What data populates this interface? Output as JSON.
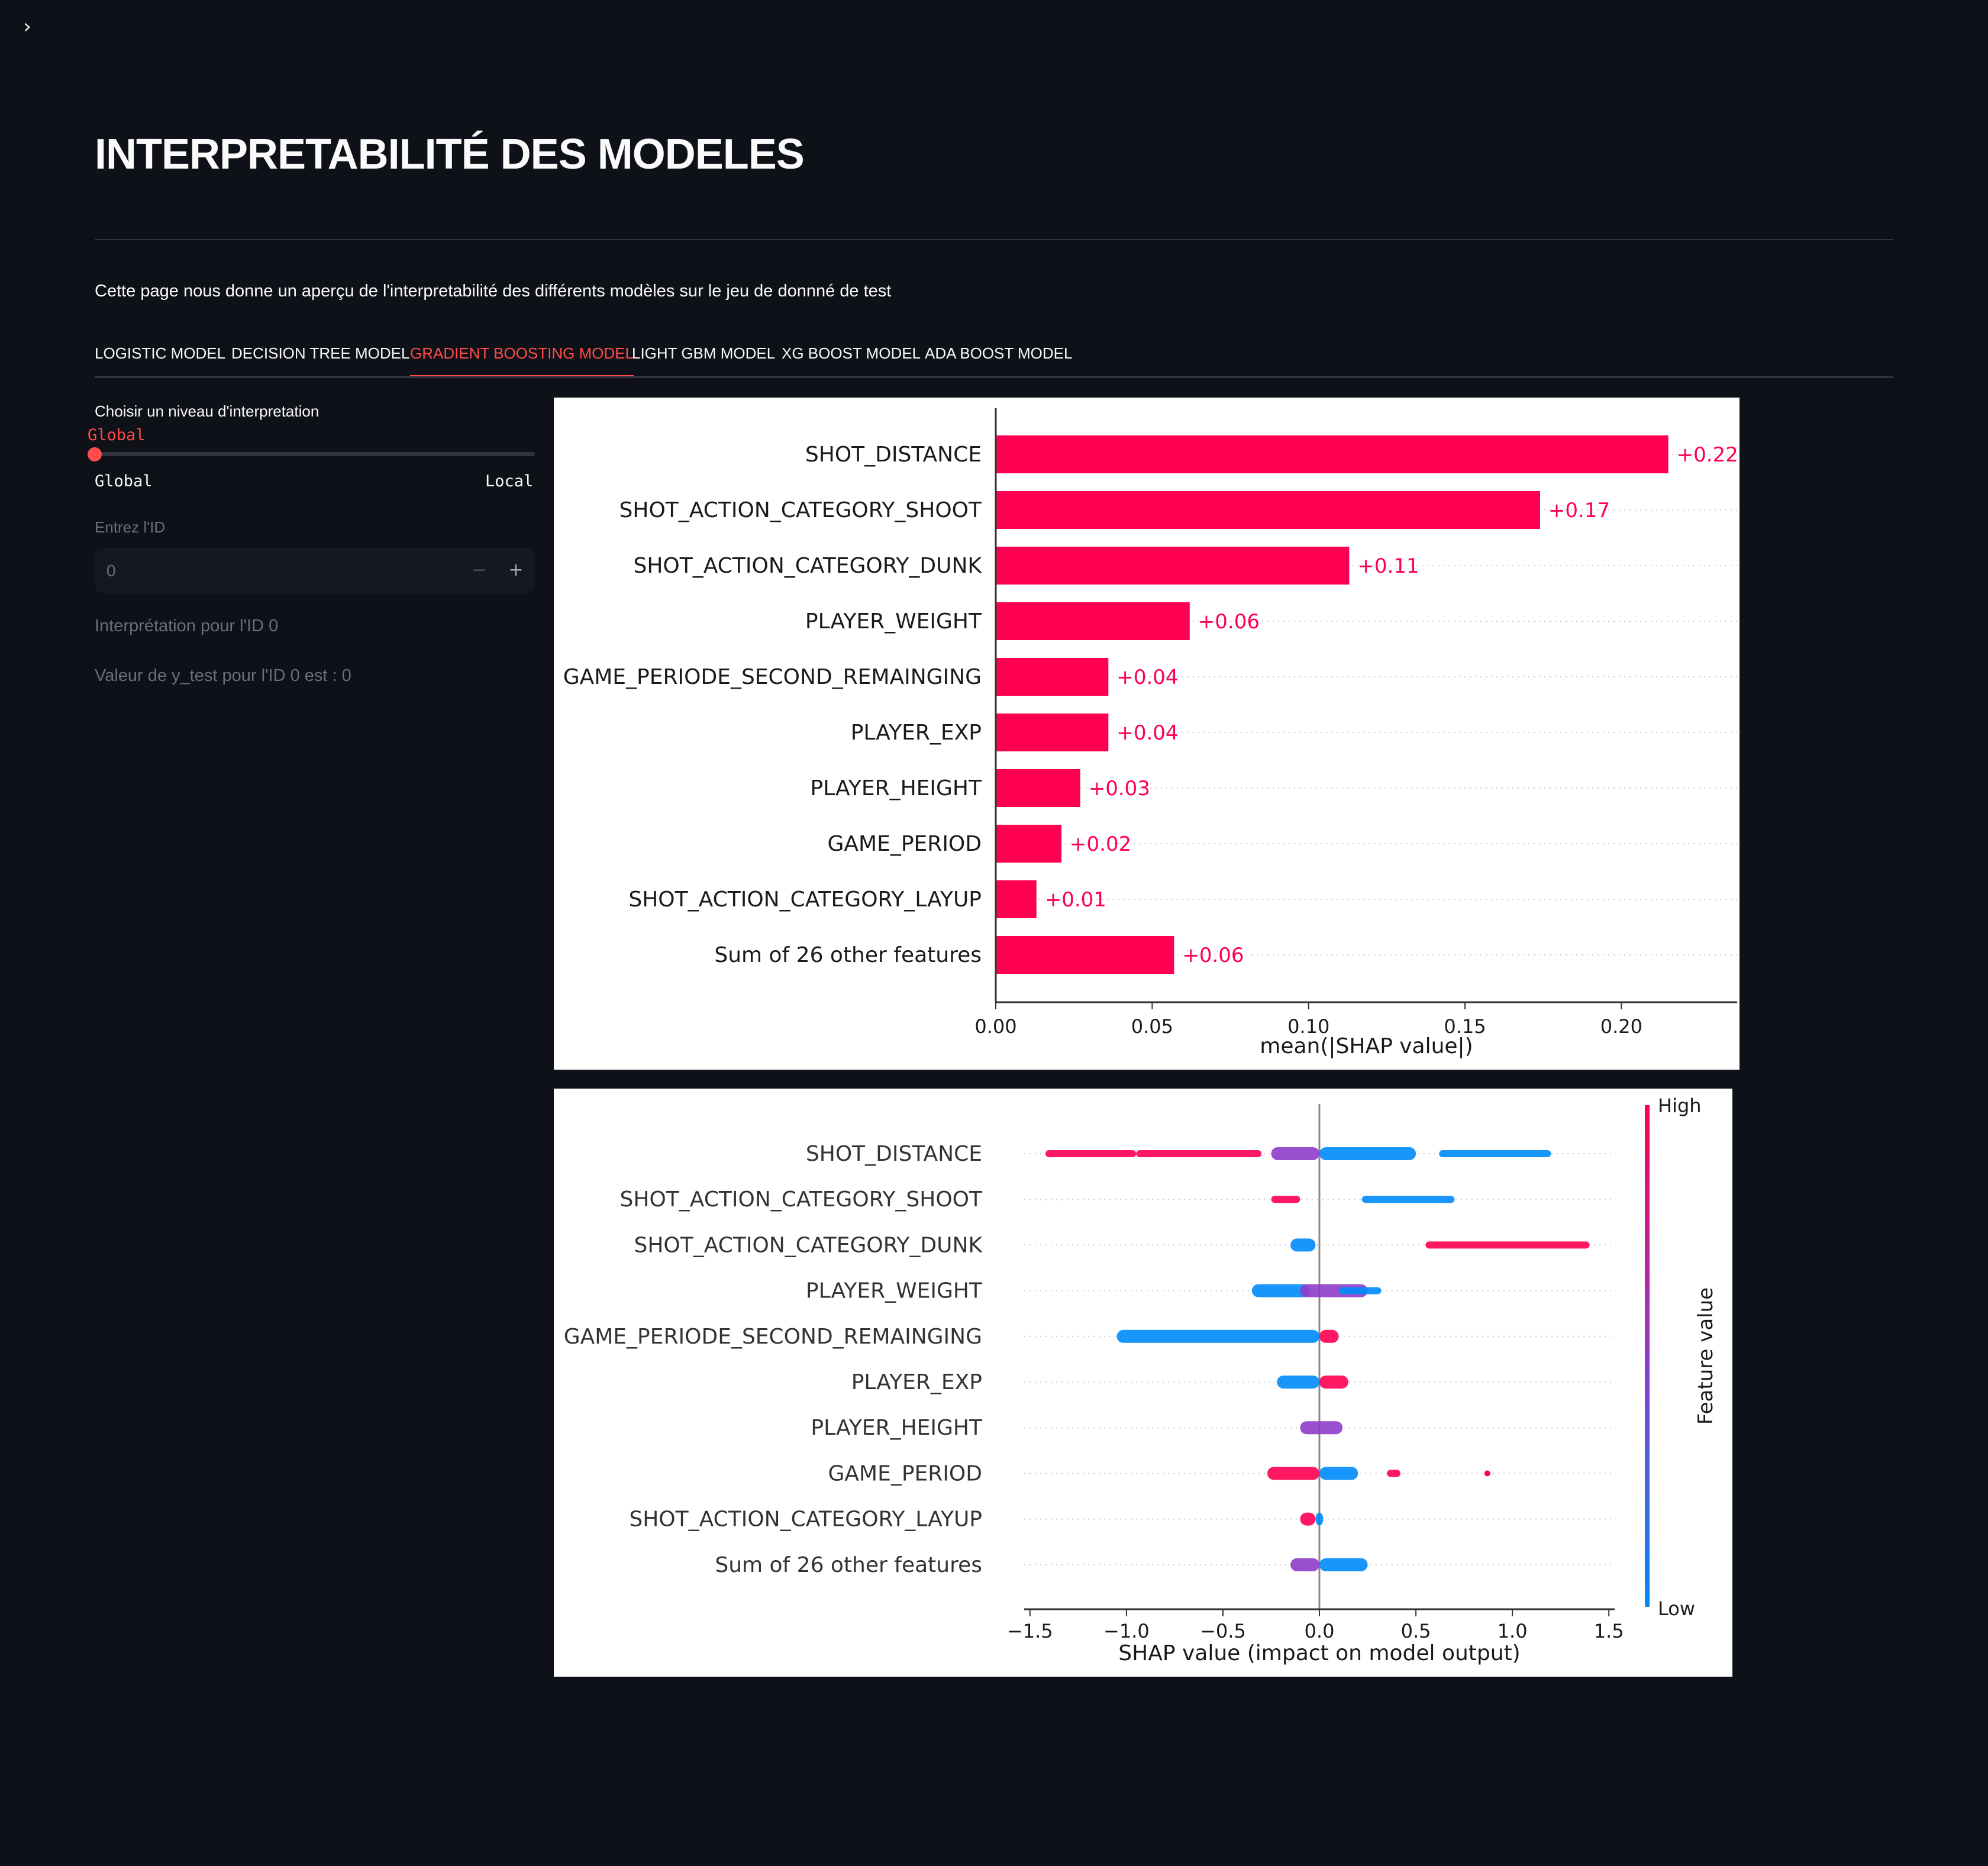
{
  "sidebar_toggle": "›",
  "page": {
    "title": "INTERPRETABILITÉ DES MODELES",
    "intro": "Cette page nous donne un aperçu de l'interpretabilité des différents modèles sur le jeu de donnné de test"
  },
  "tabs": [
    {
      "label": "LOGISTIC MODEL",
      "active": false
    },
    {
      "label": "DECISION TREE MODEL",
      "active": false
    },
    {
      "label": "GRADIENT BOOSTING MODEL",
      "active": true
    },
    {
      "label": "LIGHT GBM MODEL",
      "active": false
    },
    {
      "label": "XG BOOST MODEL",
      "active": false
    },
    {
      "label": "ADA BOOST MODEL",
      "active": false
    }
  ],
  "controls": {
    "slider_label": "Choisir un niveau d'interpretation",
    "slider_value": "Global",
    "slider_min_label": "Global",
    "slider_max_label": "Local",
    "id_label": "Entrez l'ID",
    "id_value": "0",
    "minus": "−",
    "plus": "+",
    "interpretation_text": "Interprétation pour l'ID 0",
    "ytest_text": "Valeur de y_test pour l'ID 0 est : 0"
  },
  "colors": {
    "accent": "#ff4b4b",
    "bar": "#ff0051",
    "shap_high": "#ff0051",
    "shap_low": "#008bfb",
    "background": "#0e1117"
  },
  "chart_data": [
    {
      "type": "bar",
      "orientation": "horizontal",
      "categories": [
        "SHOT_DISTANCE",
        "SHOT_ACTION_CATEGORY_SHOOT",
        "SHOT_ACTION_CATEGORY_DUNK",
        "PLAYER_WEIGHT",
        "GAME_PERIODE_SECOND_REMAINGING",
        "PLAYER_EXP",
        "PLAYER_HEIGHT",
        "GAME_PERIOD",
        "SHOT_ACTION_CATEGORY_LAYUP",
        "Sum of 26 other features"
      ],
      "values": [
        0.215,
        0.174,
        0.113,
        0.062,
        0.036,
        0.036,
        0.027,
        0.021,
        0.013,
        0.057
      ],
      "value_labels": [
        "+0.22",
        "+0.17",
        "+0.11",
        "+0.06",
        "+0.04",
        "+0.04",
        "+0.03",
        "+0.02",
        "+0.01",
        "+0.06"
      ],
      "xlabel": "mean(|SHAP value|)",
      "xticks": [
        "0.00",
        "0.05",
        "0.10",
        "0.15",
        "0.20"
      ],
      "xlim": [
        0,
        0.237
      ]
    },
    {
      "type": "scatter",
      "subtype": "beeswarm",
      "categories": [
        "SHOT_DISTANCE",
        "SHOT_ACTION_CATEGORY_SHOOT",
        "SHOT_ACTION_CATEGORY_DUNK",
        "PLAYER_WEIGHT",
        "GAME_PERIODE_SECOND_REMAINGING",
        "PLAYER_EXP",
        "PLAYER_HEIGHT",
        "GAME_PERIOD",
        "SHOT_ACTION_CATEGORY_LAYUP",
        "Sum of 26 other features"
      ],
      "series": [
        {
          "segments": [
            [
              -1.42,
              -0.95,
              "high"
            ],
            [
              -0.95,
              -0.3,
              "high"
            ],
            [
              -0.25,
              0.0,
              "mid"
            ],
            [
              0.0,
              0.5,
              "low"
            ],
            [
              0.62,
              1.2,
              "low"
            ]
          ]
        },
        {
          "segments": [
            [
              -0.25,
              -0.1,
              "high"
            ],
            [
              0.22,
              0.7,
              "low"
            ]
          ]
        },
        {
          "segments": [
            [
              -0.15,
              -0.02,
              "low"
            ],
            [
              0.55,
              1.4,
              "high"
            ]
          ]
        },
        {
          "segments": [
            [
              -0.35,
              -0.05,
              "low"
            ],
            [
              -0.1,
              0.25,
              "mid"
            ],
            [
              0.1,
              0.32,
              "low"
            ]
          ]
        },
        {
          "segments": [
            [
              -1.05,
              0.0,
              "low"
            ],
            [
              0.0,
              0.1,
              "high"
            ]
          ]
        },
        {
          "segments": [
            [
              -0.22,
              0.0,
              "low"
            ],
            [
              0.0,
              0.15,
              "high"
            ]
          ]
        },
        {
          "segments": [
            [
              -0.1,
              0.12,
              "mid"
            ]
          ]
        },
        {
          "segments": [
            [
              -0.27,
              0.0,
              "high"
            ],
            [
              0.0,
              0.2,
              "low"
            ],
            [
              0.35,
              0.42,
              "high"
            ],
            [
              0.87,
              0.87,
              "high"
            ]
          ]
        },
        {
          "segments": [
            [
              -0.1,
              -0.02,
              "high"
            ],
            [
              -0.02,
              0.02,
              "low"
            ]
          ]
        },
        {
          "segments": [
            [
              -0.15,
              0.0,
              "mid"
            ],
            [
              0.0,
              0.25,
              "low"
            ]
          ]
        }
      ],
      "xlabel": "SHAP value (impact on model output)",
      "xticks": [
        "−1.5",
        "−1.0",
        "−0.5",
        "0.0",
        "0.5",
        "1.0",
        "1.5"
      ],
      "xlim": [
        -1.53,
        1.53
      ],
      "colorbar": {
        "label": "Feature value",
        "high": "High",
        "low": "Low"
      }
    }
  ]
}
